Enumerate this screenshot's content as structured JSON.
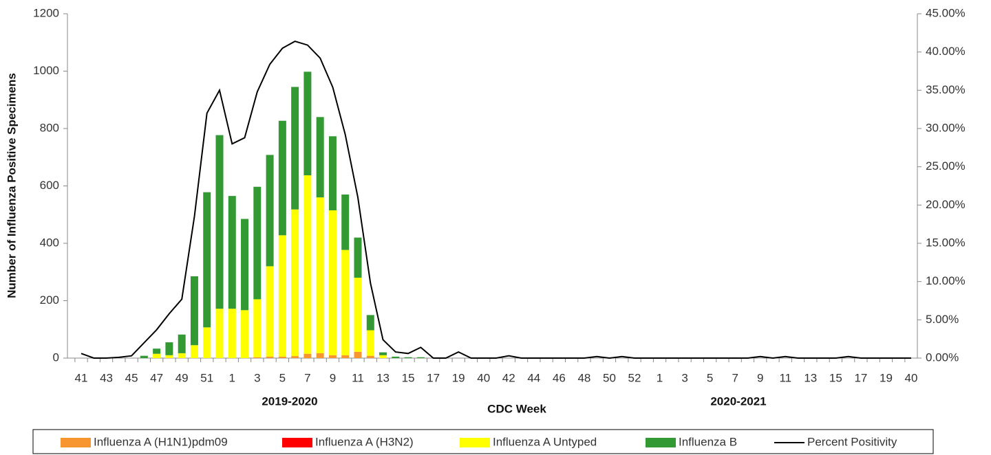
{
  "chart_data": {
    "type": "bar",
    "stacked": true,
    "ylabel": "Number of Influenza Positive Specimens",
    "xlabel": "CDC Week",
    "annotations": [
      "2019-2020",
      "2020-2021"
    ],
    "categories": [
      "41",
      null,
      "43",
      null,
      "45",
      null,
      "47",
      null,
      "49",
      null,
      "51",
      null,
      "1",
      null,
      "3",
      null,
      "5",
      null,
      "7",
      null,
      "9",
      null,
      "11",
      null,
      "13",
      null,
      "15",
      null,
      "17",
      null,
      "19",
      null,
      "40",
      null,
      "42",
      null,
      "44",
      null,
      "46",
      null,
      "48",
      null,
      "50",
      null,
      "52",
      null,
      "1",
      null,
      "3",
      null,
      "5",
      null,
      "7",
      null,
      "9",
      null,
      "11",
      null,
      "13",
      null,
      "15",
      null,
      "17",
      null,
      "19",
      null,
      "40"
    ],
    "ylim": [
      0,
      1200
    ],
    "yticks": [
      0,
      200,
      400,
      600,
      800,
      1000,
      1200
    ],
    "y2lim": [
      0,
      45
    ],
    "y2ticks": [
      {
        "value": 0,
        "label": "0.00%"
      },
      {
        "value": 5,
        "label": "5.00%"
      },
      {
        "value": 10,
        "label": "10.00%"
      },
      {
        "value": 15,
        "label": "15.00%"
      },
      {
        "value": 20,
        "label": "20.00%"
      },
      {
        "value": 25,
        "label": "25.00%"
      },
      {
        "value": 30,
        "label": "30.00%"
      },
      {
        "value": 35,
        "label": "35.00%"
      },
      {
        "value": 40,
        "label": "40.00%"
      },
      {
        "value": 45,
        "label": "45.00%"
      }
    ],
    "series": [
      {
        "name": "Influenza A (H1N1)pdm09",
        "color": "#f7962f",
        "values": [
          0,
          0,
          0,
          0,
          0,
          0,
          0,
          0,
          0,
          0,
          0,
          0,
          0,
          0,
          3,
          5,
          5,
          7,
          15,
          17,
          10,
          10,
          22,
          8,
          0,
          0,
          0,
          0,
          0,
          0,
          0,
          0,
          0,
          0,
          0,
          0,
          0,
          0,
          0,
          0,
          0,
          0,
          0,
          0,
          0,
          0,
          0,
          0,
          0,
          0,
          0,
          0,
          0,
          0,
          0,
          0,
          0,
          0,
          0,
          0,
          0,
          0,
          0,
          0,
          0,
          0,
          0
        ]
      },
      {
        "name": "Influenza A (H3N2)",
        "color": "#ff0000",
        "values": [
          0,
          0,
          0,
          0,
          0,
          0,
          0,
          0,
          0,
          0,
          0,
          0,
          0,
          0,
          0,
          0,
          0,
          0,
          0,
          0,
          0,
          0,
          0,
          0,
          0,
          0,
          0,
          0,
          0,
          0,
          0,
          0,
          0,
          0,
          0,
          0,
          0,
          0,
          0,
          0,
          0,
          0,
          0,
          0,
          0,
          0,
          0,
          0,
          0,
          0,
          0,
          0,
          0,
          0,
          0,
          0,
          0,
          0,
          0,
          0,
          0,
          0,
          0,
          0,
          0,
          0,
          0
        ]
      },
      {
        "name": "Influenza A Untyped",
        "color": "#ffff00",
        "values": [
          0,
          0,
          0,
          0,
          0,
          0,
          15,
          10,
          17,
          45,
          107,
          172,
          172,
          167,
          202,
          315,
          423,
          511,
          622,
          543,
          505,
          367,
          258,
          89,
          10,
          0,
          0,
          0,
          0,
          0,
          0,
          0,
          0,
          0,
          0,
          0,
          0,
          0,
          0,
          0,
          0,
          0,
          0,
          0,
          0,
          0,
          0,
          0,
          0,
          0,
          0,
          0,
          0,
          0,
          0,
          0,
          0,
          0,
          0,
          0,
          0,
          0,
          0,
          0,
          0,
          0,
          0
        ]
      },
      {
        "name": "Influenza B",
        "color": "#339933",
        "values": [
          0,
          0,
          0,
          0,
          0,
          8,
          18,
          45,
          65,
          240,
          471,
          605,
          393,
          318,
          392,
          388,
          399,
          427,
          361,
          280,
          258,
          193,
          140,
          53,
          10,
          5,
          3,
          3,
          0,
          0,
          0,
          0,
          0,
          0,
          0,
          0,
          0,
          0,
          0,
          0,
          0,
          0,
          0,
          0,
          0,
          0,
          0,
          0,
          0,
          0,
          0,
          0,
          0,
          0,
          0,
          0,
          0,
          0,
          0,
          0,
          0,
          0,
          0,
          0,
          0,
          0,
          0
        ]
      },
      {
        "name": "Percent Positivity",
        "type": "line",
        "axis": "y2",
        "color": "#000000",
        "values": [
          0.6,
          0,
          0,
          0.1,
          0.3,
          2.0,
          3.7,
          5.8,
          7.7,
          18.5,
          32,
          35,
          28,
          28.8,
          34.8,
          38.4,
          40.5,
          41.4,
          40.9,
          39.2,
          35.4,
          29.2,
          21,
          9.8,
          2.4,
          0.8,
          0.6,
          1.4,
          0,
          0,
          0.8,
          0,
          0,
          0,
          0.3,
          0,
          0,
          0,
          0,
          0,
          0,
          0.2,
          0,
          0.2,
          0,
          0,
          0,
          0,
          0,
          0,
          0,
          0,
          0,
          0,
          0.2,
          0,
          0.2,
          0,
          0,
          0,
          0,
          0.2,
          0,
          0,
          0,
          0,
          0
        ]
      }
    ]
  }
}
